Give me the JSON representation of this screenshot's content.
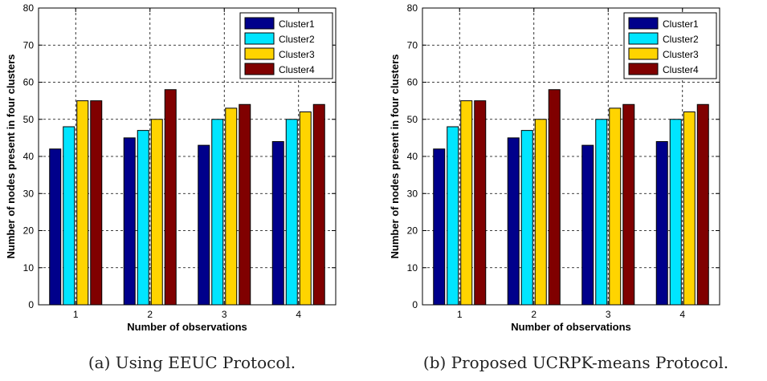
{
  "chart_data": [
    {
      "type": "bar",
      "caption": "(a) Using EEUC Protocol.",
      "xlabel": "Number of observations",
      "ylabel": "Number of nodes present in four clusters",
      "categories": [
        "1",
        "2",
        "3",
        "4"
      ],
      "ylim": [
        0,
        80
      ],
      "yticks": [
        "0",
        "10",
        "20",
        "30",
        "40",
        "50",
        "60",
        "70",
        "80"
      ],
      "grid": true,
      "legend_position": "top-right",
      "series": [
        {
          "name": "Cluster1",
          "color": "#00008b",
          "values": [
            42,
            45,
            43,
            44
          ]
        },
        {
          "name": "Cluster2",
          "color": "#00e5ff",
          "values": [
            48,
            47,
            50,
            50
          ]
        },
        {
          "name": "Cluster3",
          "color": "#ffd400",
          "values": [
            55,
            50,
            53,
            52
          ]
        },
        {
          "name": "Cluster4",
          "color": "#800000",
          "values": [
            55,
            58,
            54,
            54
          ]
        }
      ]
    },
    {
      "type": "bar",
      "caption": "(b) Proposed UCRPK-means Protocol.",
      "xlabel": "Number of observations",
      "ylabel": "Number of nodes present in four clusters",
      "categories": [
        "1",
        "2",
        "3",
        "4"
      ],
      "ylim": [
        0,
        80
      ],
      "yticks": [
        "0",
        "10",
        "20",
        "30",
        "40",
        "50",
        "60",
        "70",
        "80"
      ],
      "grid": true,
      "legend_position": "top-right",
      "series": [
        {
          "name": "Cluster1",
          "color": "#00008b",
          "values": [
            42,
            45,
            43,
            44
          ]
        },
        {
          "name": "Cluster2",
          "color": "#00e5ff",
          "values": [
            48,
            47,
            50,
            50
          ]
        },
        {
          "name": "Cluster3",
          "color": "#ffd400",
          "values": [
            55,
            50,
            53,
            52
          ]
        },
        {
          "name": "Cluster4",
          "color": "#800000",
          "values": [
            55,
            58,
            54,
            54
          ]
        }
      ]
    }
  ]
}
